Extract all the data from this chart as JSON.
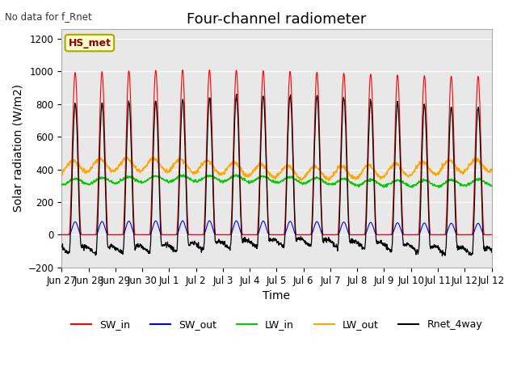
{
  "title": "Four-channel radiometer",
  "subtitle": "No data for f_Rnet",
  "xlabel": "Time",
  "ylabel": "Solar radiation (W/m2)",
  "ylim": [
    -200,
    1260
  ],
  "yticks": [
    -200,
    0,
    200,
    400,
    600,
    800,
    1000,
    1200
  ],
  "annotation": "HS_met",
  "days": 16,
  "x_tick_labels": [
    "Jun 27",
    "Jun 28",
    "Jun 29",
    "Jun 30",
    "Jul 1",
    "Jul 2",
    "Jul 3",
    "Jul 4",
    "Jul 5",
    "Jul 6",
    "Jul 7",
    "Jul 8",
    "Jul 9",
    "Jul 10",
    "Jul 11",
    "Jul 12"
  ],
  "colors": {
    "SW_in": "#ff0000",
    "SW_out": "#0000ff",
    "LW_in": "#00cc00",
    "LW_out": "#ffa500",
    "Rnet_4way": "#000000"
  },
  "legend_labels": [
    "SW_in",
    "SW_out",
    "LW_in",
    "LW_out",
    "Rnet_4way"
  ],
  "background_color": "#ffffff",
  "plot_bg_color": "#e8e8e8",
  "grid_color": "#ffffff",
  "title_fontsize": 13,
  "label_fontsize": 10,
  "tick_fontsize": 8.5
}
